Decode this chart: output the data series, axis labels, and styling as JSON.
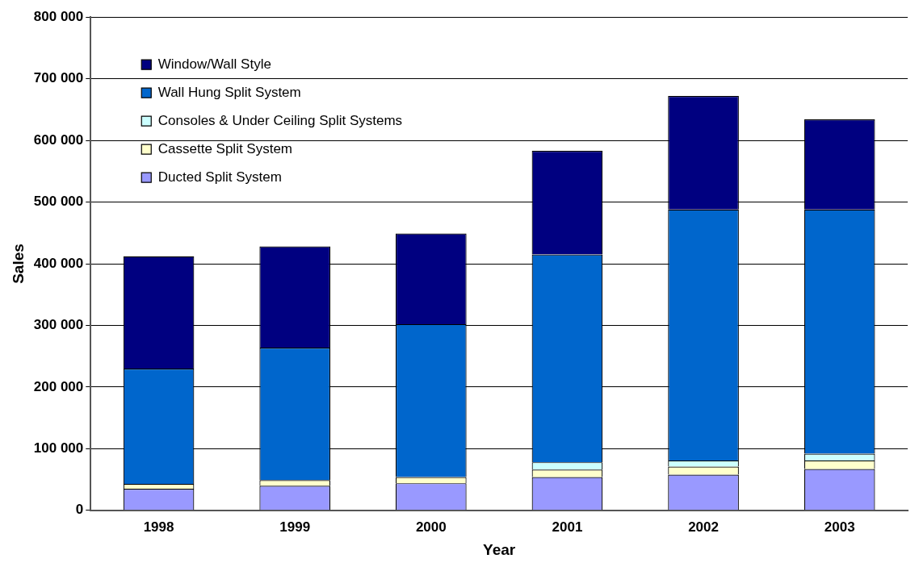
{
  "chart_data": {
    "type": "bar",
    "stacked": true,
    "xlabel": "Year",
    "ylabel": "Sales",
    "categories": [
      "1998",
      "1999",
      "2000",
      "2001",
      "2002",
      "2003"
    ],
    "series": [
      {
        "name": "Ducted Split System",
        "color": "#9999ff",
        "values": [
          35000,
          40000,
          44000,
          54000,
          58000,
          67000
        ]
      },
      {
        "name": "Cassette Split System",
        "color": "#ffffcc",
        "values": [
          8000,
          9000,
          10000,
          12000,
          13000,
          14000
        ]
      },
      {
        "name": "Consoles & Under Ceiling Split Systems",
        "color": "#ccffff",
        "values": [
          null,
          null,
          null,
          12000,
          10000,
          11000
        ]
      },
      {
        "name": "Wall Hung Split System",
        "color": "#0066cc",
        "values": [
          187000,
          215000,
          248000,
          337000,
          407000,
          396000
        ]
      },
      {
        "name": "Window/Wall Style",
        "color": "#000080",
        "values": [
          182000,
          164000,
          147000,
          168000,
          184000,
          146000
        ]
      }
    ],
    "ylim": [
      0,
      800000
    ],
    "yticks": [
      {
        "value": 0,
        "label": "0"
      },
      {
        "value": 100000,
        "label": "100 000"
      },
      {
        "value": 200000,
        "label": "200 000"
      },
      {
        "value": 300000,
        "label": "300 000"
      },
      {
        "value": 400000,
        "label": "400 000"
      },
      {
        "value": 500000,
        "label": "500 000"
      },
      {
        "value": 600000,
        "label": "600 000"
      },
      {
        "value": 700000,
        "label": "700 000"
      },
      {
        "value": 800000,
        "label": "800 000"
      }
    ],
    "grid": "y",
    "legend": "top left"
  }
}
